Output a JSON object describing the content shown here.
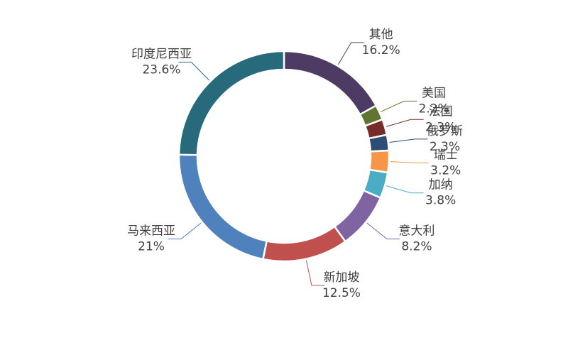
{
  "chart_data": {
    "type": "donut",
    "categories": [
      "其他",
      "美国",
      "法国",
      "俄罗斯",
      "瑞士",
      "加纳",
      "意大利",
      "新加坡",
      "马来西亚",
      "印度尼西亚"
    ],
    "values": [
      16.2,
      2.2,
      2.3,
      2.3,
      3.2,
      3.8,
      8.2,
      12.5,
      21,
      23.6
    ],
    "value_labels": [
      "16.2%",
      "2.2%",
      "2.3%",
      "2.3%",
      "3.2%",
      "3.8%",
      "8.2%",
      "12.5%",
      "21%",
      "23.6%"
    ],
    "colors": [
      "#4e3b63",
      "#5f7530",
      "#772c2a",
      "#2c4d75",
      "#f79646",
      "#4bacc6",
      "#8064a2",
      "#c0504d",
      "#4f81bd",
      "#276a7c"
    ]
  }
}
